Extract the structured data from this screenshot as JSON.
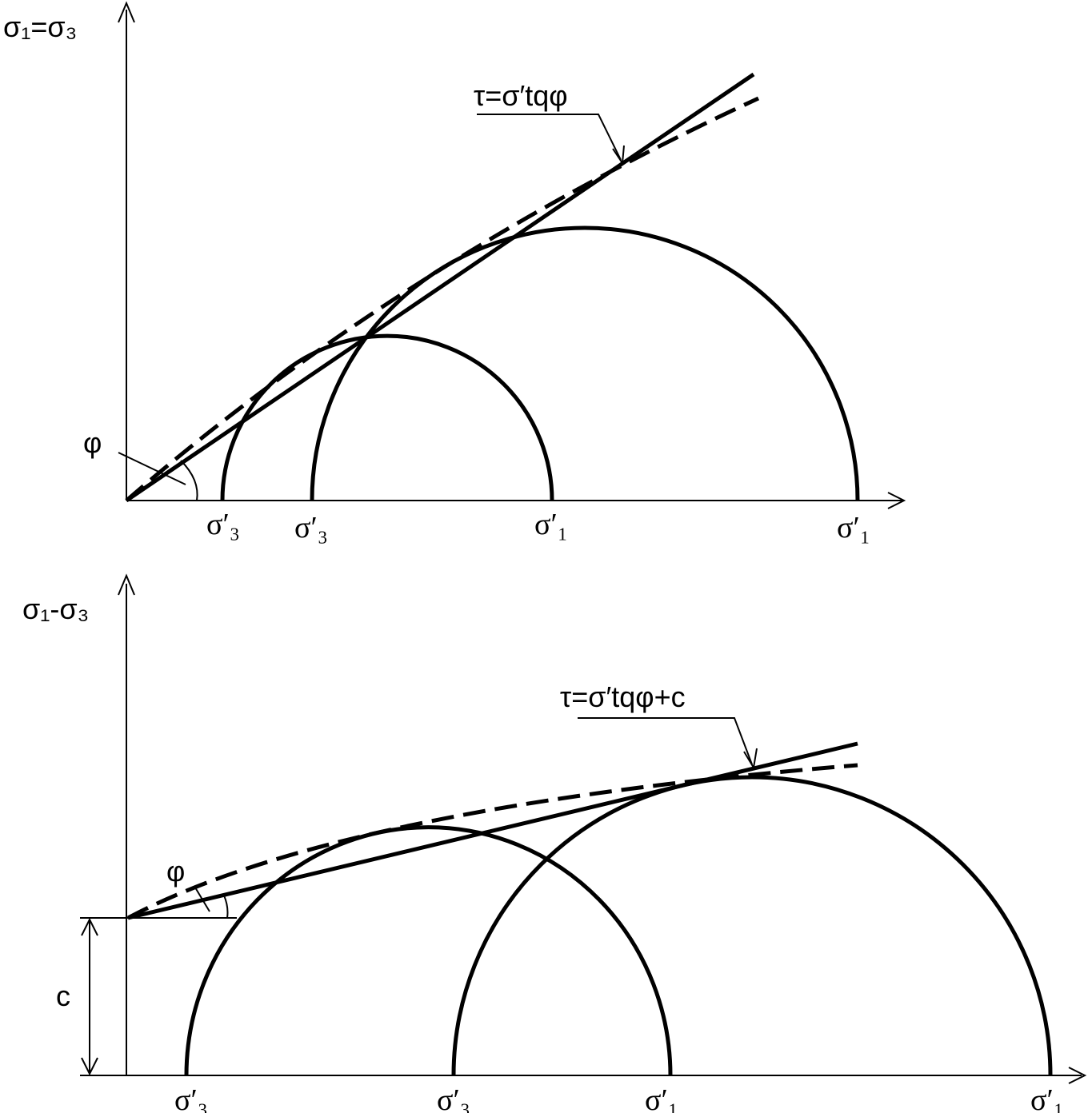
{
  "diagrams": [
    {
      "axis_label": "σ₁=σ₃",
      "envelope_label": "τ=σ′tqφ",
      "angle_label": "φ",
      "x_labels": [
        "σ′₃",
        "σ′₃",
        "σ′₁",
        "σ′₁"
      ]
    },
    {
      "axis_label": "σ₁-σ₃",
      "envelope_label": "τ=σ′tqφ+c",
      "angle_label": "φ",
      "intercept_label": "c",
      "x_labels": [
        "σ′₃",
        "σ′₃",
        "σ′₁",
        "σ′₁"
      ]
    }
  ]
}
